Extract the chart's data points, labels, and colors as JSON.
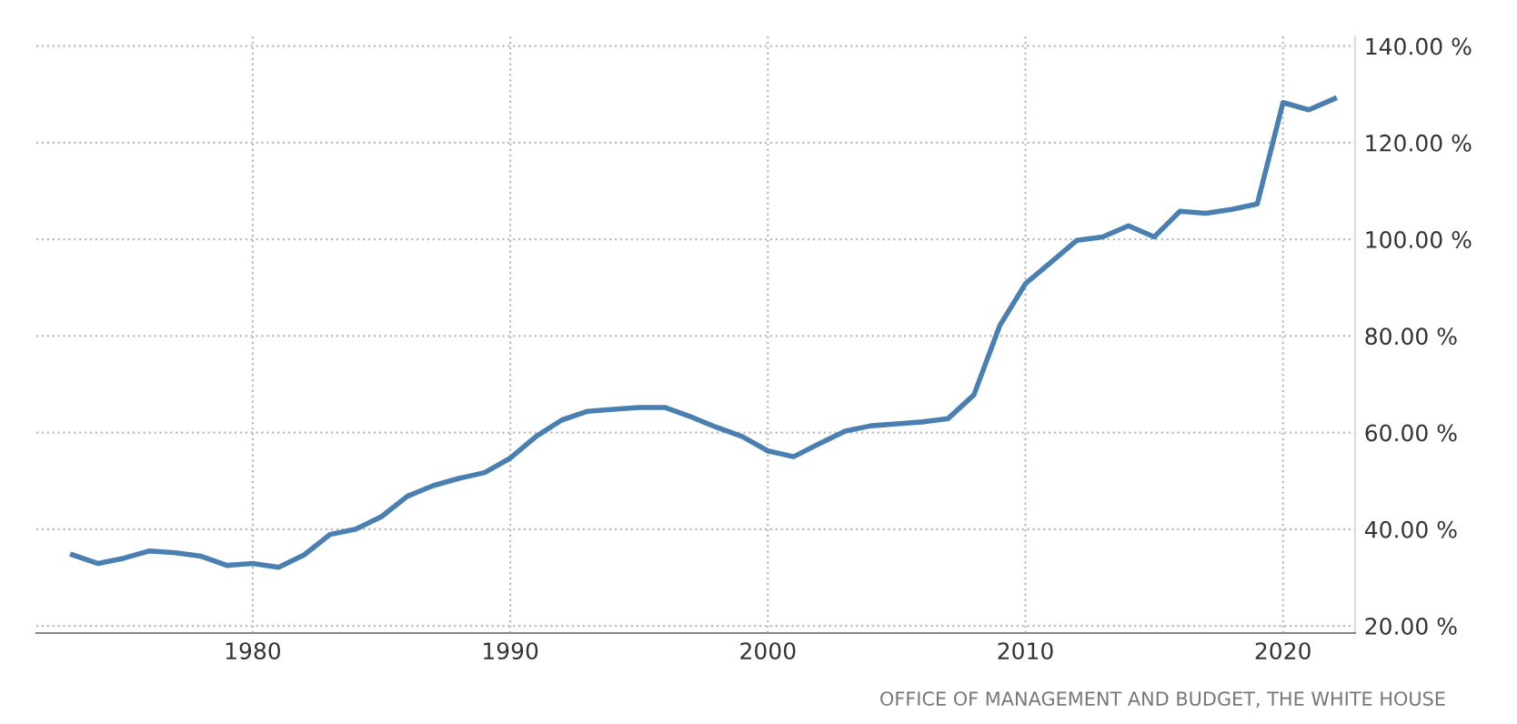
{
  "chart_data": {
    "type": "line",
    "x": [
      1973,
      1974,
      1975,
      1976,
      1977,
      1978,
      1979,
      1980,
      1981,
      1982,
      1983,
      1984,
      1985,
      1986,
      1987,
      1988,
      1989,
      1990,
      1991,
      1992,
      1993,
      1994,
      1995,
      1996,
      1997,
      1998,
      1999,
      2000,
      2001,
      2002,
      2003,
      2004,
      2005,
      2006,
      2007,
      2008,
      2009,
      2010,
      2011,
      2012,
      2013,
      2014,
      2015,
      2016,
      2017,
      2018,
      2019,
      2020,
      2021,
      2022
    ],
    "series": [
      {
        "color": "#4a7fb1",
        "values": [
          34.7,
          32.9,
          34.0,
          35.5,
          35.1,
          34.4,
          32.5,
          32.9,
          32.1,
          34.7,
          38.9,
          40.0,
          42.6,
          46.8,
          49.0,
          50.5,
          51.7,
          54.7,
          59.2,
          62.6,
          64.4,
          64.8,
          65.2,
          65.2,
          63.3,
          61.1,
          59.2,
          56.2,
          55.0,
          57.7,
          60.3,
          61.4,
          61.8,
          62.2,
          62.9,
          67.8,
          82.1,
          90.8,
          95.3,
          99.8,
          100.5,
          102.8,
          100.5,
          105.8,
          105.4,
          106.2,
          107.3,
          128.3,
          126.8,
          129.1
        ]
      }
    ],
    "xlim": [
      1971.6,
      2022.8
    ],
    "xticks": [
      1980,
      1990,
      2000,
      2010,
      2020
    ],
    "ylim": [
      18.5,
      142
    ],
    "yticks": [
      {
        "value": 20,
        "label": "20.00 %"
      },
      {
        "value": 40,
        "label": "40.00 %"
      },
      {
        "value": 60,
        "label": "60.00 %"
      },
      {
        "value": 80,
        "label": "80.00 %"
      },
      {
        "value": 100,
        "label": "100.00 %"
      },
      {
        "value": 120,
        "label": "120.00 %"
      },
      {
        "value": 140,
        "label": "140.00 %"
      }
    ],
    "grid": true,
    "line_style": "solid",
    "marker": "none",
    "annotations": [
      "OFFICE OF MANAGEMENT AND BUDGET, THE WHITE HOUSE"
    ]
  }
}
